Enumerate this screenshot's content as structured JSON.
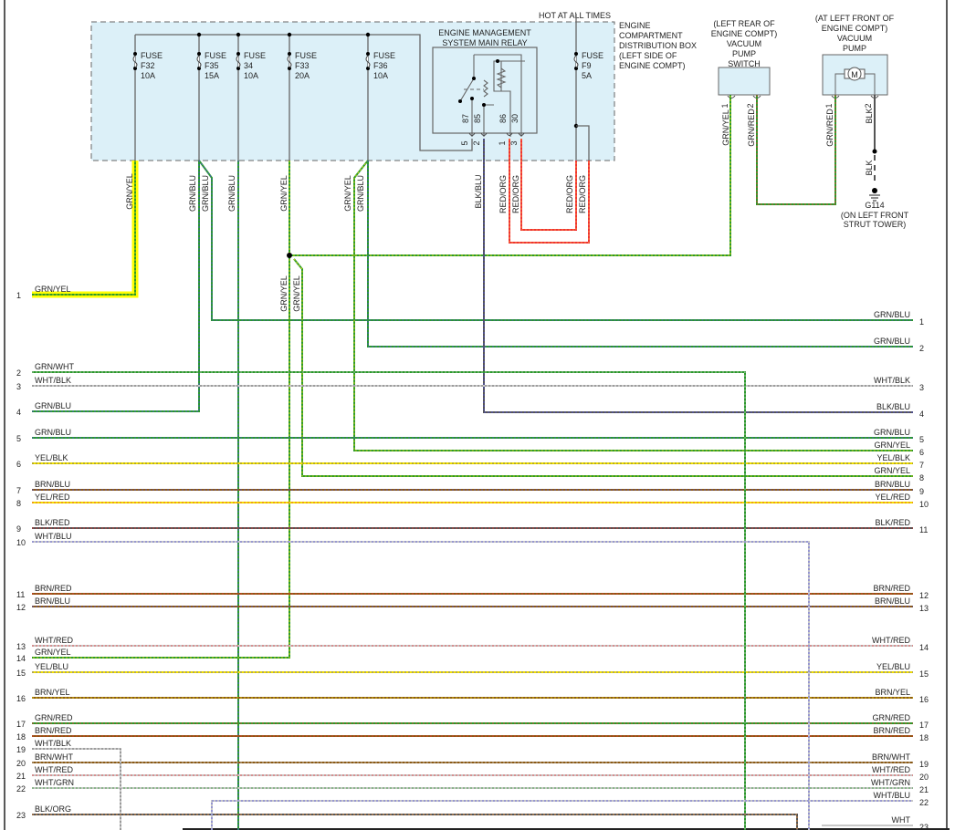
{
  "header": {
    "hot_label": "HOT AT ALL TIMES"
  },
  "distribution_box": {
    "label_lines": [
      "ENGINE",
      "COMPARTMENT",
      "DISTRIBUTION BOX",
      "(LEFT SIDE OF",
      "ENGINE COMPT)"
    ]
  },
  "fuses": [
    {
      "word": "FUSE",
      "id": "F32",
      "rating": "10A"
    },
    {
      "word": "FUSE",
      "id": "F35",
      "rating": "15A"
    },
    {
      "word": "FUSE",
      "id": "34",
      "rating": "10A"
    },
    {
      "word": "FUSE",
      "id": "F33",
      "rating": "20A"
    },
    {
      "word": "FUSE",
      "id": "F36",
      "rating": "10A"
    },
    {
      "word": "FUSE",
      "id": "F9",
      "rating": "5A"
    }
  ],
  "relay": {
    "title_lines": [
      "ENGINE MANAGEMENT",
      "SYSTEM MAIN RELAY"
    ],
    "terminals": [
      "87",
      "85",
      "86",
      "30"
    ],
    "pins": [
      "5",
      "2",
      "1",
      "3"
    ]
  },
  "vacuum_switch": {
    "label_lines": [
      "(LEFT REAR OF",
      "ENGINE COMPT)",
      "VACUUM",
      "PUMP",
      "SWITCH"
    ],
    "pins": [
      "1",
      "2"
    ]
  },
  "vacuum_pump": {
    "label_lines": [
      "(AT LEFT FRONT OF",
      "ENGINE COMPT)",
      "VACUUM",
      "PUMP"
    ],
    "pins": [
      "1",
      "2"
    ],
    "motor": "M"
  },
  "ground": {
    "id": "G114",
    "location_lines": [
      "(ON LEFT FRONT",
      "STRUT TOWER)"
    ]
  },
  "vertical_wire_labels": [
    "GRN/YEL",
    "GRN/BLU",
    "GRN/BLU",
    "GRN/BLU",
    "GRN/YEL",
    "GRN/YEL",
    "GRN/BLU",
    "BLK/BLU",
    "RED/ORG",
    "RED/ORG",
    "RED/ORG",
    "RED/ORG",
    "GRN/YEL",
    "GRN/YEL",
    "GRN/YEL",
    "GRN/RED",
    "GRN/RED",
    "BLK",
    "BLK"
  ],
  "left_connector": [
    {
      "num": "1",
      "label": "GRN/YEL"
    },
    {
      "num": "2",
      "label": "GRN/WHT"
    },
    {
      "num": "3",
      "label": "WHT/BLK"
    },
    {
      "num": "4",
      "label": "GRN/BLU"
    },
    {
      "num": "5",
      "label": "GRN/BLU"
    },
    {
      "num": "6",
      "label": "YEL/BLK"
    },
    {
      "num": "7",
      "label": "BRN/BLU"
    },
    {
      "num": "8",
      "label": "YEL/RED"
    },
    {
      "num": "9",
      "label": "BLK/RED"
    },
    {
      "num": "10",
      "label": "WHT/BLU"
    },
    {
      "num": "11",
      "label": "BRN/RED"
    },
    {
      "num": "12",
      "label": "BRN/BLU"
    },
    {
      "num": "13",
      "label": "WHT/RED"
    },
    {
      "num": "14",
      "label": "GRN/YEL"
    },
    {
      "num": "15",
      "label": "YEL/BLU"
    },
    {
      "num": "16",
      "label": "BRN/YEL"
    },
    {
      "num": "17",
      "label": "GRN/RED"
    },
    {
      "num": "18",
      "label": "BRN/RED"
    },
    {
      "num": "19",
      "label": "WHT/BLK"
    },
    {
      "num": "20",
      "label": "BRN/WHT"
    },
    {
      "num": "21",
      "label": "WHT/RED"
    },
    {
      "num": "22",
      "label": "WHT/GRN"
    },
    {
      "num": "23",
      "label": "BLK/ORG"
    }
  ],
  "right_connector": [
    {
      "num": "1",
      "label": "GRN/BLU"
    },
    {
      "num": "2",
      "label": "GRN/BLU"
    },
    {
      "num": "3",
      "label": "WHT/BLK"
    },
    {
      "num": "4",
      "label": "BLK/BLU"
    },
    {
      "num": "5",
      "label": "GRN/BLU"
    },
    {
      "num": "6",
      "label": "GRN/YEL"
    },
    {
      "num": "7",
      "label": "YEL/BLK"
    },
    {
      "num": "8",
      "label": "GRN/YEL"
    },
    {
      "num": "9",
      "label": "BRN/BLU"
    },
    {
      "num": "10",
      "label": "YEL/RED"
    },
    {
      "num": "11",
      "label": "BLK/RED"
    },
    {
      "num": "12",
      "label": "BRN/RED"
    },
    {
      "num": "13",
      "label": "BRN/BLU"
    },
    {
      "num": "14",
      "label": "WHT/RED"
    },
    {
      "num": "15",
      "label": "YEL/BLU"
    },
    {
      "num": "16",
      "label": "BRN/YEL"
    },
    {
      "num": "17",
      "label": "GRN/RED"
    },
    {
      "num": "18",
      "label": "BRN/RED"
    },
    {
      "num": "19",
      "label": "BRN/WHT"
    },
    {
      "num": "20",
      "label": "WHT/RED"
    },
    {
      "num": "21",
      "label": "WHT/GRN"
    },
    {
      "num": "22",
      "label": "WHT/BLU"
    },
    {
      "num": "23",
      "label": "WHT"
    }
  ],
  "colors": {
    "GRN": "#2a9a2a",
    "BLU": "#4a4ae0",
    "YEL": "#f2e000",
    "WHT": "#c8c8c8",
    "BLK": "#555555",
    "RED": "#ee3333",
    "BRN": "#8b5a14",
    "ORG": "#ff9c40",
    "box_fill": "#dcf0f8",
    "highlight": "#ffff00"
  }
}
